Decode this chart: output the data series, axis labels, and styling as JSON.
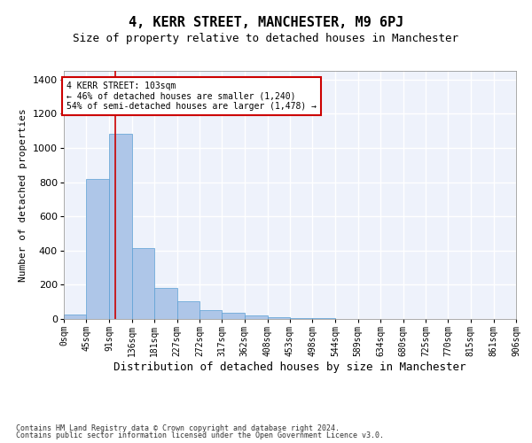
{
  "title": "4, KERR STREET, MANCHESTER, M9 6PJ",
  "subtitle": "Size of property relative to detached houses in Manchester",
  "xlabel": "Distribution of detached houses by size in Manchester",
  "ylabel": "Number of detached properties",
  "bar_values": [
    25,
    820,
    1080,
    415,
    180,
    105,
    52,
    35,
    20,
    10,
    5,
    3,
    2,
    1,
    1,
    1,
    1,
    1,
    1,
    1
  ],
  "bin_edges": [
    0,
    45,
    91,
    136,
    181,
    227,
    272,
    317,
    362,
    408,
    453,
    498,
    544,
    589,
    634,
    680,
    725,
    770,
    815,
    861,
    906
  ],
  "tick_labels": [
    "0sqm",
    "45sqm",
    "91sqm",
    "136sqm",
    "181sqm",
    "227sqm",
    "272sqm",
    "317sqm",
    "362sqm",
    "408sqm",
    "453sqm",
    "498sqm",
    "544sqm",
    "589sqm",
    "634sqm",
    "680sqm",
    "725sqm",
    "770sqm",
    "815sqm",
    "861sqm",
    "906sqm"
  ],
  "bar_color": "#aec6e8",
  "bar_edge_color": "#5a9fd4",
  "vline_x": 103,
  "vline_color": "#cc0000",
  "annotation_text": "4 KERR STREET: 103sqm\n← 46% of detached houses are smaller (1,240)\n54% of semi-detached houses are larger (1,478) →",
  "annotation_box_color": "#cc0000",
  "ylim": [
    0,
    1450
  ],
  "yticks": [
    0,
    200,
    400,
    600,
    800,
    1000,
    1200,
    1400
  ],
  "footer_line1": "Contains HM Land Registry data © Crown copyright and database right 2024.",
  "footer_line2": "Contains public sector information licensed under the Open Government Licence v3.0.",
  "background_color": "#eef2fb",
  "grid_color": "#ffffff",
  "title_fontsize": 11,
  "subtitle_fontsize": 9,
  "ylabel_fontsize": 8,
  "xlabel_fontsize": 9,
  "tick_fontsize": 7,
  "annotation_fontsize": 7,
  "footer_fontsize": 6
}
